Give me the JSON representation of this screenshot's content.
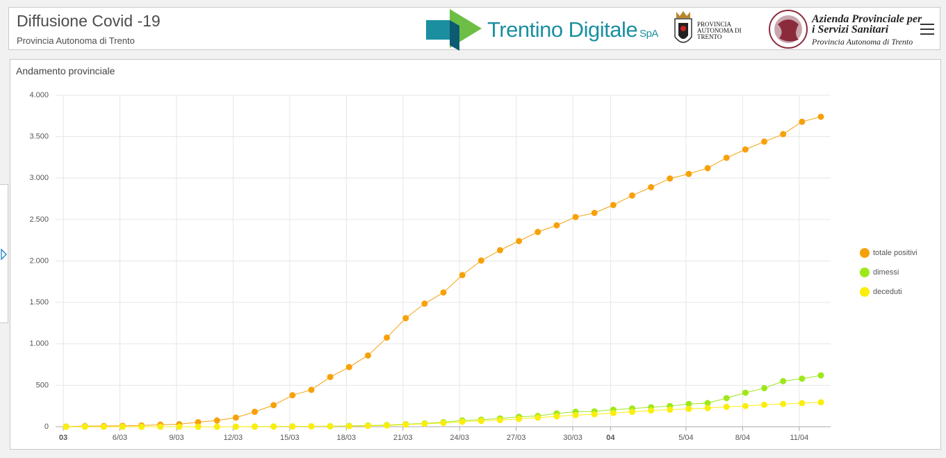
{
  "header": {
    "title": "Diffusione Covid -19",
    "subtitle": "Provincia Autonoma di Trento",
    "logo_trentino": "Trentino Digitale",
    "logo_spa": "SpA",
    "logo_provincia": "PROVINCIA AUTONOMA DI TRENTO",
    "logo_azienda": "Azienda Provinciale per i Servizi Sanitari",
    "logo_azienda_sub": "Provincia Autonoma di Trento"
  },
  "chart_data": {
    "type": "line",
    "title": "Andamento provinciale",
    "categories": [
      "03",
      null,
      null,
      "6/03",
      null,
      null,
      "9/03",
      null,
      null,
      "12/03",
      null,
      null,
      "15/03",
      null,
      null,
      "18/03",
      null,
      null,
      "21/03",
      null,
      null,
      "24/03",
      null,
      null,
      "27/03",
      null,
      null,
      "30/03",
      null,
      "04",
      null,
      null,
      null,
      "5/04",
      null,
      null,
      "8/04",
      null,
      null,
      "11/04",
      null
    ],
    "series": [
      {
        "name": "totale positivi",
        "color": "#f7a10a",
        "values": [
          2,
          7,
          8,
          10,
          15,
          25,
          30,
          55,
          75,
          110,
          180,
          260,
          380,
          445,
          600,
          720,
          860,
          1075,
          1310,
          1485,
          1620,
          1830,
          2005,
          2130,
          2240,
          2350,
          2430,
          2530,
          2580,
          2675,
          2790,
          2890,
          2995,
          3050,
          3120,
          3245,
          3345,
          3440,
          3530,
          3680,
          3740
        ]
      },
      {
        "name": "dimessi",
        "color": "#9ee81a",
        "values": [
          0,
          0,
          0,
          0,
          0,
          0,
          0,
          0,
          0,
          0,
          2,
          3,
          4,
          5,
          6,
          10,
          15,
          20,
          30,
          40,
          55,
          75,
          85,
          100,
          120,
          130,
          160,
          180,
          185,
          205,
          220,
          235,
          250,
          275,
          285,
          345,
          410,
          465,
          550,
          580,
          620
        ]
      },
      {
        "name": "deceduti",
        "color": "#fbee0c",
        "values": [
          0,
          0,
          0,
          0,
          0,
          0,
          0,
          0,
          0,
          0,
          1,
          2,
          3,
          4,
          5,
          7,
          10,
          15,
          25,
          35,
          45,
          60,
          70,
          80,
          95,
          110,
          125,
          140,
          150,
          165,
          180,
          195,
          205,
          215,
          225,
          240,
          250,
          265,
          275,
          285,
          295
        ]
      }
    ],
    "ylim": [
      0,
      4000
    ],
    "yticks": [
      0,
      500,
      {
        "value": 1000,
        "label": "1.000"
      },
      {
        "value": 1500,
        "label": "1.500"
      },
      {
        "value": 2000,
        "label": "2.000"
      },
      {
        "value": 2500,
        "label": "2.500"
      },
      {
        "value": 3000,
        "label": "3.000"
      },
      {
        "value": 3500,
        "label": "3.500"
      },
      {
        "value": 4000,
        "label": "4.000"
      }
    ],
    "grid": true,
    "legend": "right"
  }
}
